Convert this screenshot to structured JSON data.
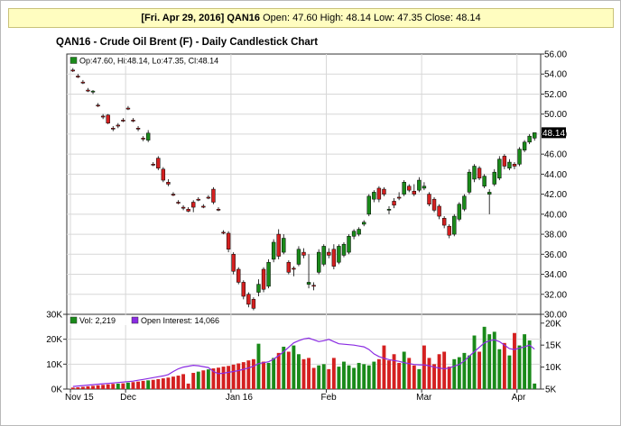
{
  "header": {
    "date": "[Fri. Apr 29, 2016]",
    "symbol": "QAN16",
    "ohlc": "Open: 47.60 High: 48.14 Low: 47.35 Close: 48.14"
  },
  "chart_title": "QAN16 - Crude Oil Brent (F) - Daily Candlestick Chart",
  "price_legend": "Op:47.60, Hi:48.14, Lo:47.35, Cl:48.14",
  "last_price_label": "48.14",
  "volume_legend": {
    "vol": "Vol: 2,219",
    "oi": "Open Interest: 14,066"
  },
  "colors": {
    "up": "#1a8a1a",
    "down": "#d42020",
    "oi_line": "#8a2be2",
    "grid": "#d7d7d7"
  },
  "chart_data": [
    {
      "type": "candlestick",
      "title": "QAN16 - Crude Oil Brent (F) - Daily Candlestick Chart",
      "x_tick_labels": [
        "Nov 15",
        "Dec",
        "Jan 16",
        "Feb",
        "Mar",
        "Apr"
      ],
      "y_ticks": [
        30,
        32,
        34,
        36,
        38,
        40,
        42,
        44,
        46,
        48,
        50,
        52,
        54,
        56
      ],
      "y_tick_labels": [
        "30.00",
        "32.00",
        "34.00",
        "36.00",
        "38.00",
        "40.00",
        "42.00",
        "44.00",
        "46.00",
        "48.00",
        "50.00",
        "52.00",
        "54.00",
        "56.00"
      ],
      "ylim": [
        30,
        56
      ],
      "grid": true,
      "ohlc": [
        [
          54.4,
          54.6,
          54.2,
          54.3
        ],
        [
          53.8,
          54.0,
          53.6,
          53.7
        ],
        [
          53.2,
          53.4,
          53.0,
          53.1
        ],
        [
          52.4,
          52.6,
          52.2,
          52.3
        ],
        [
          52.2,
          52.4,
          52.0,
          52.3
        ],
        [
          50.9,
          51.1,
          50.7,
          50.8
        ],
        [
          49.8,
          50.0,
          49.5,
          49.7
        ],
        [
          49.9,
          50.0,
          49.0,
          49.1
        ],
        [
          48.6,
          48.8,
          48.3,
          48.5
        ],
        [
          48.9,
          49.1,
          48.6,
          48.8
        ],
        [
          49.4,
          49.6,
          49.2,
          49.3
        ],
        [
          50.6,
          50.8,
          50.4,
          50.5
        ],
        [
          49.4,
          49.6,
          49.2,
          49.3
        ],
        [
          48.6,
          48.8,
          48.3,
          48.5
        ],
        [
          47.6,
          47.8,
          47.3,
          47.5
        ],
        [
          47.4,
          48.4,
          47.2,
          48.1
        ],
        [
          45.0,
          45.2,
          44.8,
          44.9
        ],
        [
          45.6,
          45.8,
          44.4,
          44.6
        ],
        [
          44.5,
          44.7,
          43.2,
          43.4
        ],
        [
          43.2,
          43.5,
          42.8,
          43.0
        ],
        [
          42.0,
          42.2,
          41.8,
          41.9
        ],
        [
          41.2,
          41.4,
          41.0,
          41.1
        ],
        [
          40.7,
          40.9,
          40.4,
          40.6
        ],
        [
          40.5,
          40.7,
          40.2,
          40.3
        ],
        [
          41.2,
          41.4,
          40.2,
          40.7
        ],
        [
          41.5,
          41.7,
          41.3,
          41.4
        ],
        [
          40.8,
          41.0,
          40.6,
          40.7
        ],
        [
          41.7,
          41.9,
          41.5,
          41.6
        ],
        [
          42.5,
          42.7,
          41.0,
          41.2
        ],
        [
          40.5,
          40.7,
          40.3,
          40.4
        ],
        [
          38.2,
          38.4,
          38.0,
          38.1
        ],
        [
          38.1,
          38.3,
          36.2,
          36.5
        ],
        [
          36.0,
          36.2,
          34.0,
          34.3
        ],
        [
          34.5,
          34.7,
          33.0,
          33.2
        ],
        [
          33.2,
          33.4,
          31.5,
          31.8
        ],
        [
          32.0,
          32.2,
          30.7,
          31.0
        ],
        [
          31.5,
          31.7,
          30.4,
          30.6
        ],
        [
          32.2,
          33.5,
          31.8,
          33.0
        ],
        [
          34.5,
          34.7,
          32.2,
          32.5
        ],
        [
          32.8,
          35.5,
          32.6,
          35.2
        ],
        [
          35.5,
          37.5,
          35.2,
          37.2
        ],
        [
          38.0,
          38.5,
          35.5,
          35.8
        ],
        [
          36.2,
          38.0,
          36.0,
          37.6
        ],
        [
          35.2,
          35.4,
          34.0,
          34.2
        ],
        [
          34.6,
          34.8,
          33.8,
          34.5
        ],
        [
          35.0,
          36.8,
          34.8,
          36.5
        ],
        [
          36.2,
          36.6,
          35.6,
          35.9
        ],
        [
          33.0,
          36.0,
          32.6,
          33.2
        ],
        [
          32.9,
          33.2,
          32.4,
          32.8
        ],
        [
          34.2,
          36.5,
          34.0,
          36.2
        ],
        [
          35.0,
          37.0,
          34.8,
          36.8
        ],
        [
          36.2,
          36.6,
          35.6,
          35.9
        ],
        [
          36.5,
          37.0,
          34.5,
          34.8
        ],
        [
          35.2,
          37.0,
          35.0,
          36.8
        ],
        [
          35.9,
          37.2,
          35.7,
          37.0
        ],
        [
          36.2,
          38.0,
          36.0,
          37.8
        ],
        [
          37.8,
          38.5,
          37.5,
          38.3
        ],
        [
          38.0,
          38.7,
          37.8,
          38.5
        ],
        [
          39.0,
          39.4,
          38.8,
          39.2
        ],
        [
          40.0,
          42.0,
          39.8,
          41.8
        ],
        [
          41.5,
          42.4,
          41.2,
          42.2
        ],
        [
          42.6,
          42.8,
          41.2,
          41.5
        ],
        [
          42.5,
          42.7,
          41.8,
          42.0
        ],
        [
          40.4,
          40.8,
          40.0,
          40.5
        ],
        [
          41.3,
          41.6,
          40.6,
          40.9
        ],
        [
          41.7,
          42.2,
          41.4,
          41.6
        ],
        [
          42.0,
          43.4,
          41.8,
          43.2
        ],
        [
          42.8,
          43.0,
          42.2,
          42.4
        ],
        [
          42.3,
          43.0,
          41.8,
          42.0
        ],
        [
          42.4,
          43.7,
          42.2,
          43.4
        ],
        [
          42.6,
          43.2,
          42.4,
          42.8
        ],
        [
          42.0,
          42.2,
          40.8,
          41.0
        ],
        [
          41.5,
          41.7,
          40.2,
          40.4
        ],
        [
          40.8,
          41.0,
          39.5,
          39.8
        ],
        [
          39.6,
          39.8,
          38.6,
          38.9
        ],
        [
          38.8,
          39.0,
          37.6,
          37.9
        ],
        [
          38.0,
          40.0,
          37.8,
          39.8
        ],
        [
          39.5,
          41.2,
          39.3,
          41.0
        ],
        [
          40.5,
          42.0,
          40.3,
          41.8
        ],
        [
          42.2,
          44.5,
          42.0,
          44.2
        ],
        [
          43.5,
          45.0,
          43.2,
          44.8
        ],
        [
          44.6,
          44.8,
          43.4,
          43.6
        ],
        [
          42.8,
          44.0,
          42.6,
          43.8
        ],
        [
          42.0,
          42.5,
          40.0,
          42.2
        ],
        [
          43.0,
          44.5,
          42.8,
          44.2
        ],
        [
          43.6,
          45.8,
          43.4,
          45.5
        ],
        [
          45.8,
          46.0,
          44.5,
          44.8
        ],
        [
          44.6,
          45.5,
          44.4,
          45.2
        ],
        [
          45.0,
          45.2,
          44.5,
          44.8
        ],
        [
          45.0,
          46.7,
          44.8,
          46.5
        ],
        [
          46.4,
          47.4,
          46.2,
          47.2
        ],
        [
          47.2,
          48.0,
          47.0,
          47.8
        ],
        [
          47.6,
          48.14,
          47.35,
          48.14
        ]
      ],
      "volume": {
        "y_ticks": [
          0,
          10000,
          20000,
          30000
        ],
        "y_tick_labels": [
          "0K",
          "10K",
          "20K",
          "30K"
        ],
        "ylim": [
          0,
          30000
        ],
        "values": [
          600,
          700,
          900,
          1100,
          1300,
          1500,
          1700,
          1900,
          2100,
          2200,
          2300,
          2600,
          2800,
          3000,
          3300,
          3500,
          3700,
          4000,
          4300,
          4600,
          5000,
          5400,
          6000,
          2200,
          6500,
          7000,
          7500,
          7900,
          8300,
          8600,
          9000,
          9300,
          9800,
          10300,
          10800,
          11500,
          12000,
          18200,
          11000,
          10500,
          12500,
          14500,
          17000,
          15000,
          17500,
          14000,
          12000,
          12500,
          8500,
          9500,
          10000,
          8000,
          12500,
          9000,
          11000,
          9500,
          8500,
          10500,
          10000,
          9500,
          11000,
          12000,
          17500,
          11500,
          14000,
          10500,
          15000,
          12500,
          9500,
          8000,
          17500,
          12500,
          10000,
          14000,
          15000,
          9000,
          12000,
          12800,
          14500,
          13500,
          21500,
          15000,
          25000,
          22000,
          23000,
          16000,
          18500,
          13500,
          22500,
          17500,
          22000,
          19500,
          2219
        ],
        "directions": [
          "d",
          "d",
          "d",
          "d",
          "d",
          "d",
          "d",
          "d",
          "d",
          "u",
          "d",
          "u",
          "d",
          "d",
          "d",
          "u",
          "d",
          "d",
          "d",
          "d",
          "d",
          "d",
          "d",
          "d",
          "d",
          "u",
          "d",
          "u",
          "d",
          "d",
          "d",
          "d",
          "d",
          "d",
          "d",
          "d",
          "d",
          "u",
          "d",
          "u",
          "u",
          "d",
          "u",
          "d",
          "u",
          "u",
          "d",
          "d",
          "d",
          "u",
          "u",
          "d",
          "d",
          "u",
          "u",
          "u",
          "u",
          "u",
          "u",
          "u",
          "u",
          "d",
          "d",
          "d",
          "d",
          "d",
          "u",
          "d",
          "d",
          "u",
          "d",
          "d",
          "d",
          "d",
          "d",
          "d",
          "u",
          "u",
          "u",
          "u",
          "u",
          "d",
          "u",
          "u",
          "u",
          "u",
          "d",
          "u",
          "d",
          "u",
          "u",
          "u",
          "u"
        ]
      },
      "open_interest": {
        "y_ticks": [
          5000,
          10000,
          15000,
          20000
        ],
        "y_tick_labels": [
          "5K",
          "10K",
          "15K",
          "20K"
        ],
        "ylim": [
          5000,
          22000
        ],
        "values": [
          5600,
          5700,
          5800,
          5900,
          6000,
          6100,
          6200,
          6300,
          6400,
          6500,
          6600,
          6700,
          6800,
          7000,
          7200,
          7400,
          7600,
          7800,
          8000,
          8300,
          9000,
          9600,
          10000,
          10200,
          10400,
          10300,
          10100,
          9900,
          9000,
          8500,
          8600,
          8800,
          9000,
          9200,
          9500,
          9800,
          10200,
          10800,
          11000,
          11200,
          11800,
          12600,
          13500,
          14500,
          15500,
          16000,
          16400,
          16600,
          16200,
          15800,
          16000,
          16300,
          15800,
          15300,
          15200,
          15100,
          15000,
          14800,
          14600,
          14000,
          13000,
          12400,
          12000,
          11700,
          11500,
          11300,
          11000,
          10800,
          10600,
          10500,
          10500,
          10300,
          10000,
          9800,
          9600,
          9800,
          10200,
          10600,
          11400,
          12500,
          13500,
          14500,
          15500,
          16000,
          16200,
          15800,
          15000,
          14200,
          14000,
          14300,
          14600,
          15000,
          14066
        ]
      }
    }
  ]
}
